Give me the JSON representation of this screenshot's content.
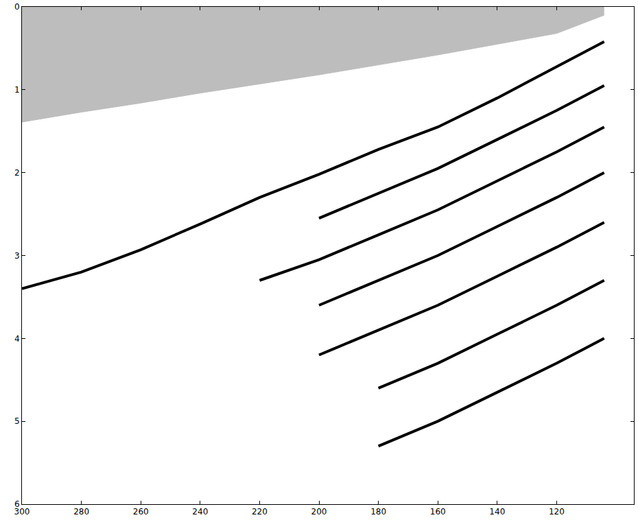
{
  "chart_data": {
    "type": "line",
    "x": [
      300,
      280,
      260,
      240,
      220,
      200,
      180,
      160,
      140,
      120,
      104
    ],
    "series": [
      {
        "type": "area",
        "color": "#bdbdbd",
        "values": [
          1.39,
          1.27,
          1.16,
          1.04,
          0.93,
          0.82,
          0.7,
          0.58,
          0.45,
          0.32,
          0.1
        ]
      },
      {
        "type": "line",
        "color": "#000000",
        "values": [
          3.4,
          3.2,
          2.93,
          2.62,
          2.3,
          2.02,
          1.72,
          1.45,
          1.1,
          0.72,
          0.42
        ]
      },
      {
        "type": "line",
        "color": "#000000",
        "values": [
          null,
          null,
          null,
          null,
          null,
          2.55,
          2.25,
          1.95,
          1.6,
          1.25,
          0.95
        ]
      },
      {
        "type": "line",
        "color": "#000000",
        "values": [
          null,
          null,
          null,
          null,
          3.3,
          3.05,
          2.75,
          2.45,
          2.1,
          1.75,
          1.45
        ]
      },
      {
        "type": "line",
        "color": "#000000",
        "values": [
          null,
          null,
          null,
          null,
          null,
          3.6,
          3.3,
          3.0,
          2.65,
          2.3,
          2.0
        ]
      },
      {
        "type": "line",
        "color": "#000000",
        "values": [
          null,
          null,
          null,
          null,
          null,
          4.2,
          3.9,
          3.6,
          3.25,
          2.9,
          2.6
        ]
      },
      {
        "type": "line",
        "color": "#000000",
        "values": [
          null,
          null,
          null,
          null,
          null,
          null,
          4.6,
          4.3,
          3.95,
          3.6,
          3.3
        ]
      },
      {
        "type": "line",
        "color": "#000000",
        "values": [
          null,
          null,
          null,
          null,
          null,
          null,
          5.3,
          5.0,
          4.65,
          4.3,
          4.0
        ]
      }
    ],
    "xlim": [
      300,
      94
    ],
    "ylim": [
      6,
      0
    ],
    "xticks": [
      300,
      280,
      260,
      240,
      220,
      200,
      180,
      160,
      140,
      120
    ],
    "yticks": [
      0,
      1,
      2,
      3,
      4,
      5,
      6
    ],
    "grid": false
  }
}
